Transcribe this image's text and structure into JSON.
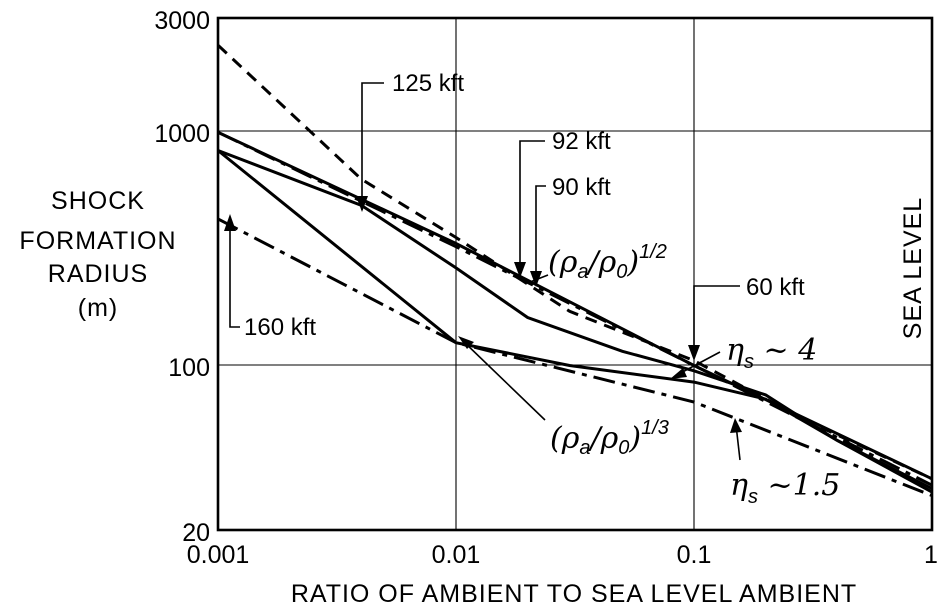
{
  "chart_data": {
    "type": "line",
    "xscale": "log",
    "yscale": "log",
    "xlim": [
      0.001,
      1
    ],
    "ylim": [
      20,
      3000
    ],
    "xticks": [
      "0.001",
      "0.01",
      "0.1",
      "1"
    ],
    "yticks": [
      "20",
      "100",
      "1000",
      "3000"
    ],
    "xlabel": "RATIO OF AMBIENT TO SEA LEVEL AMBIENT",
    "ylabel": [
      "SHOCK",
      "FORMATION",
      "RADIUS",
      "(m)"
    ],
    "vertical_label": "SEA LEVEL",
    "grid": true,
    "series": [
      {
        "style": "dashed",
        "points": [
          [
            0.001,
            2300
          ],
          [
            0.004,
            620
          ],
          [
            0.01,
            350
          ],
          [
            0.03,
            170
          ],
          [
            0.1,
            105
          ],
          [
            0.3,
            58
          ],
          [
            1,
            33
          ]
        ]
      },
      {
        "style": "solid",
        "points": [
          [
            0.001,
            980
          ],
          [
            0.01,
            330
          ],
          [
            0.1,
            100
          ],
          [
            1,
            33
          ]
        ]
      },
      {
        "style": "dash-dot",
        "points": [
          [
            0.001,
            980
          ],
          [
            0.01,
            320
          ],
          [
            0.1,
            100
          ],
          [
            1,
            31
          ]
        ]
      },
      {
        "style": "solid",
        "points": [
          [
            0.001,
            820
          ],
          [
            0.004,
            480
          ],
          [
            0.01,
            260
          ],
          [
            0.02,
            160
          ],
          [
            0.05,
            115
          ],
          [
            0.1,
            95
          ],
          [
            0.2,
            75
          ],
          [
            0.4,
            48
          ],
          [
            1,
            30
          ]
        ]
      },
      {
        "style": "solid",
        "points": [
          [
            0.001,
            820
          ],
          [
            0.01,
            125
          ],
          [
            0.03,
            100
          ],
          [
            0.1,
            85
          ],
          [
            0.2,
            72
          ],
          [
            0.4,
            48
          ],
          [
            1,
            29
          ]
        ]
      },
      {
        "style": "dash-dot",
        "points": [
          [
            0.001,
            420
          ],
          [
            0.01,
            125
          ],
          [
            0.1,
            70
          ],
          [
            1,
            28
          ]
        ]
      }
    ],
    "annotations": [
      {
        "text": "125 kft",
        "at": [
          0.0046,
          620
        ]
      },
      {
        "text": "92 kft",
        "at": [
          0.019,
          195
        ]
      },
      {
        "text": "90 kft",
        "at": [
          0.021,
          160
        ]
      },
      {
        "text": "60 kft",
        "at": [
          0.1,
          100
        ]
      },
      {
        "text": "160 kft",
        "at": [
          0.001,
          700
        ]
      },
      {
        "text": "(ρa/ρ0)1/2",
        "at": [
          0.02,
          175
        ]
      },
      {
        "text": "(ρa/ρ0)1/3",
        "at": [
          0.01,
          125
        ]
      },
      {
        "text": "ηs ~ 4",
        "at": [
          0.06,
          85
        ]
      },
      {
        "text": "ηs ~1.5",
        "at": [
          0.16,
          62
        ]
      }
    ]
  }
}
